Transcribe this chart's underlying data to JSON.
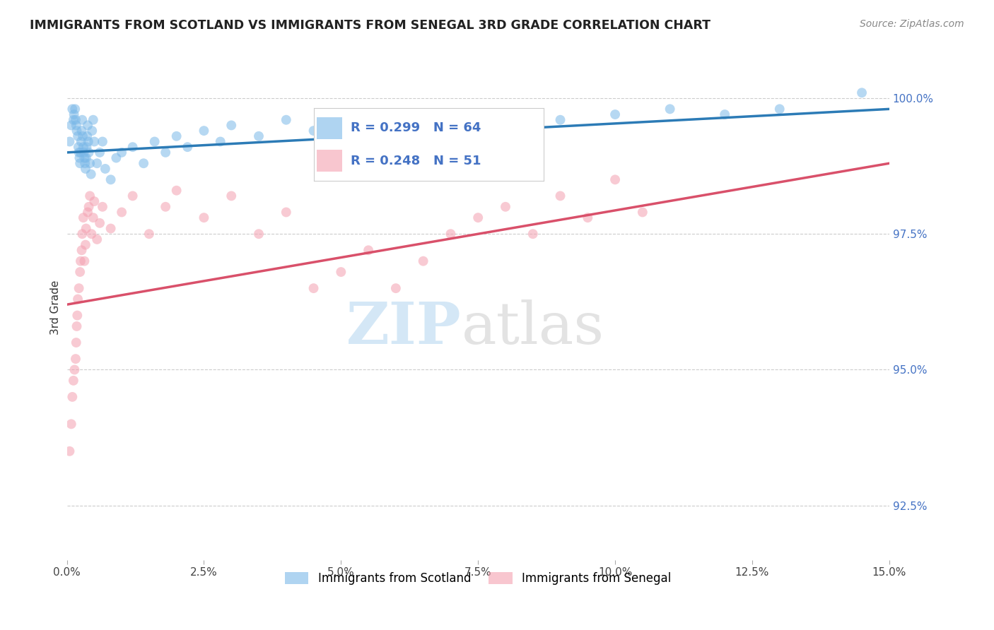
{
  "title": "IMMIGRANTS FROM SCOTLAND VS IMMIGRANTS FROM SENEGAL 3RD GRADE CORRELATION CHART",
  "source": "Source: ZipAtlas.com",
  "ylabel": "3rd Grade",
  "xlim": [
    0.0,
    15.0
  ],
  "ylim": [
    91.5,
    100.8
  ],
  "yticks": [
    92.5,
    95.0,
    97.5,
    100.0
  ],
  "xticks": [
    0.0,
    2.5,
    5.0,
    7.5,
    10.0,
    12.5,
    15.0
  ],
  "scotland_color": "#7ab8e8",
  "senegal_color": "#f4a0b0",
  "scotland_line_color": "#2c7bb6",
  "senegal_line_color": "#d9506a",
  "scotland_R": 0.299,
  "scotland_N": 64,
  "senegal_R": 0.248,
  "senegal_N": 51,
  "legend_label_scotland": "Immigrants from Scotland",
  "legend_label_senegal": "Immigrants from Senegal",
  "scotland_x": [
    0.05,
    0.08,
    0.1,
    0.12,
    0.13,
    0.15,
    0.16,
    0.17,
    0.18,
    0.2,
    0.21,
    0.22,
    0.23,
    0.24,
    0.25,
    0.26,
    0.27,
    0.28,
    0.29,
    0.3,
    0.31,
    0.32,
    0.33,
    0.34,
    0.35,
    0.36,
    0.37,
    0.38,
    0.39,
    0.4,
    0.42,
    0.44,
    0.46,
    0.48,
    0.5,
    0.55,
    0.6,
    0.65,
    0.7,
    0.8,
    0.9,
    1.0,
    1.2,
    1.4,
    1.6,
    1.8,
    2.0,
    2.2,
    2.5,
    2.8,
    3.0,
    3.5,
    4.0,
    4.5,
    5.0,
    6.0,
    7.0,
    8.0,
    9.0,
    10.0,
    11.0,
    12.0,
    13.0,
    14.5
  ],
  "scotland_y": [
    99.2,
    99.5,
    99.8,
    99.6,
    99.7,
    99.8,
    99.6,
    99.5,
    99.4,
    99.3,
    99.1,
    99.0,
    98.9,
    98.8,
    99.0,
    99.2,
    99.4,
    99.6,
    99.3,
    99.1,
    99.0,
    98.9,
    98.8,
    98.7,
    98.9,
    99.1,
    99.3,
    99.5,
    99.2,
    99.0,
    98.8,
    98.6,
    99.4,
    99.6,
    99.2,
    98.8,
    99.0,
    99.2,
    98.7,
    98.5,
    98.9,
    99.0,
    99.1,
    98.8,
    99.2,
    99.0,
    99.3,
    99.1,
    99.4,
    99.2,
    99.5,
    99.3,
    99.6,
    99.4,
    99.5,
    99.6,
    99.7,
    99.5,
    99.6,
    99.7,
    99.8,
    99.7,
    99.8,
    100.1
  ],
  "senegal_x": [
    0.05,
    0.08,
    0.1,
    0.12,
    0.14,
    0.16,
    0.17,
    0.18,
    0.19,
    0.2,
    0.22,
    0.24,
    0.25,
    0.27,
    0.28,
    0.3,
    0.32,
    0.34,
    0.35,
    0.38,
    0.4,
    0.42,
    0.45,
    0.48,
    0.5,
    0.55,
    0.6,
    0.65,
    0.8,
    1.0,
    1.2,
    1.5,
    1.8,
    2.0,
    2.5,
    3.0,
    3.5,
    4.0,
    4.5,
    5.0,
    5.5,
    6.0,
    6.5,
    7.0,
    7.5,
    8.0,
    8.5,
    9.0,
    9.5,
    10.0,
    10.5
  ],
  "senegal_y": [
    93.5,
    94.0,
    94.5,
    94.8,
    95.0,
    95.2,
    95.5,
    95.8,
    96.0,
    96.3,
    96.5,
    96.8,
    97.0,
    97.2,
    97.5,
    97.8,
    97.0,
    97.3,
    97.6,
    97.9,
    98.0,
    98.2,
    97.5,
    97.8,
    98.1,
    97.4,
    97.7,
    98.0,
    97.6,
    97.9,
    98.2,
    97.5,
    98.0,
    98.3,
    97.8,
    98.2,
    97.5,
    97.9,
    96.5,
    96.8,
    97.2,
    96.5,
    97.0,
    97.5,
    97.8,
    98.0,
    97.5,
    98.2,
    97.8,
    98.5,
    97.9
  ],
  "scotland_trendline_x": [
    0.0,
    15.0
  ],
  "scotland_trendline_y": [
    99.0,
    99.8
  ],
  "senegal_trendline_x": [
    0.0,
    15.0
  ],
  "senegal_trendline_y": [
    96.2,
    98.8
  ]
}
